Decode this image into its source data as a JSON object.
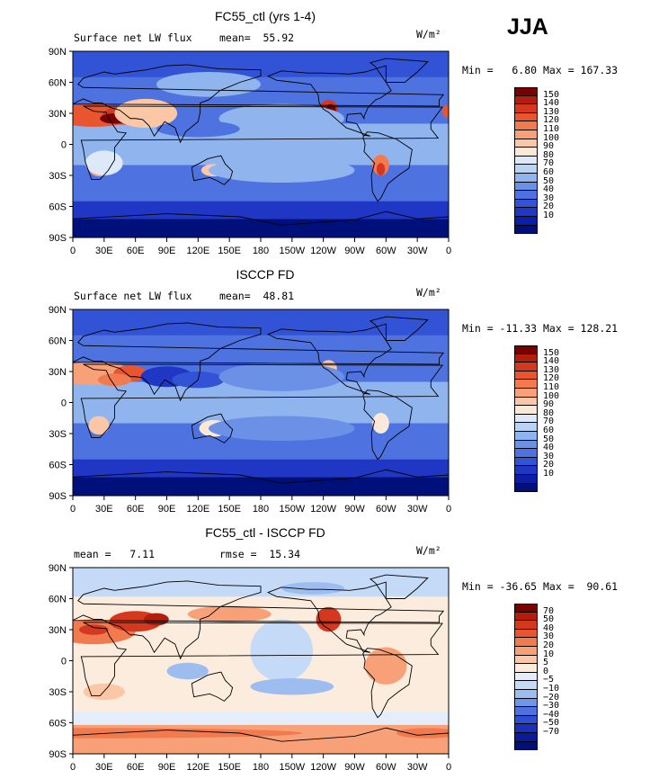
{
  "season": "JJA",
  "panels": [
    {
      "title": "FC55_ctl (yrs 1-4)",
      "left_label": "Surface net LW flux",
      "mid_label": "mean=  55.92",
      "units": "W/m²",
      "minmax": "Min =   6.80 Max = 167.33",
      "colorbar": {
        "colors": [
          "#7a0000",
          "#b31d0c",
          "#d4381e",
          "#e8552e",
          "#f27a4f",
          "#f8a178",
          "#fcc7a6",
          "#fce8d6",
          "#dde9f8",
          "#b9d3f4",
          "#8fb4ee",
          "#6a91e6",
          "#4e72e0",
          "#3353d6",
          "#1f37c4",
          "#0b1ea8",
          "#00107a"
        ],
        "labels": [
          "150",
          "140",
          "130",
          "120",
          "110",
          "100",
          "90",
          "80",
          "70",
          "60",
          "50",
          "40",
          "30",
          "20",
          "10"
        ]
      }
    },
    {
      "title": "ISCCP FD",
      "left_label": "Surface net LW flux",
      "mid_label": "mean=  48.81",
      "units": "W/m²",
      "minmax": "Min = -11.33 Max = 128.21",
      "colorbar": {
        "colors": [
          "#7a0000",
          "#b31d0c",
          "#d4381e",
          "#e8552e",
          "#f27a4f",
          "#f8a178",
          "#fcc7a6",
          "#fce8d6",
          "#dde9f8",
          "#b9d3f4",
          "#8fb4ee",
          "#6a91e6",
          "#4e72e0",
          "#3353d6",
          "#1f37c4",
          "#0b1ea8",
          "#00107a"
        ],
        "labels": [
          "150",
          "140",
          "130",
          "120",
          "110",
          "100",
          "90",
          "80",
          "70",
          "60",
          "50",
          "40",
          "30",
          "20",
          "10"
        ]
      }
    },
    {
      "title": "FC55_ctl - ISCCP FD",
      "left_label": "mean =   7.11",
      "mid_label": "rmse =  15.34",
      "units": "W/m²",
      "minmax": "Min = -36.65 Max =  90.61",
      "colorbar": {
        "colors": [
          "#7a0000",
          "#b31d0c",
          "#d4381e",
          "#e8552e",
          "#f27a4f",
          "#f8a178",
          "#fcc7a6",
          "#fcecde",
          "#e4eefa",
          "#c4daf6",
          "#9dbdf0",
          "#7196e8",
          "#4e72e0",
          "#2f4fd2",
          "#1a2fba",
          "#0a1a9a",
          "#00107a"
        ],
        "labels": [
          "70",
          "50",
          "40",
          "30",
          "20",
          "10",
          "5",
          "0",
          "−5",
          "−10",
          "−20",
          "−30",
          "−40",
          "−50",
          "−70"
        ]
      }
    }
  ],
  "lat_labels": [
    "90N",
    "60N",
    "30N",
    "0",
    "30S",
    "60S",
    "90S"
  ],
  "lon_labels": [
    "0",
    "30E",
    "60E",
    "90E",
    "120E",
    "150E",
    "180",
    "150W",
    "120W",
    "90W",
    "60W",
    "30W",
    "0"
  ]
}
